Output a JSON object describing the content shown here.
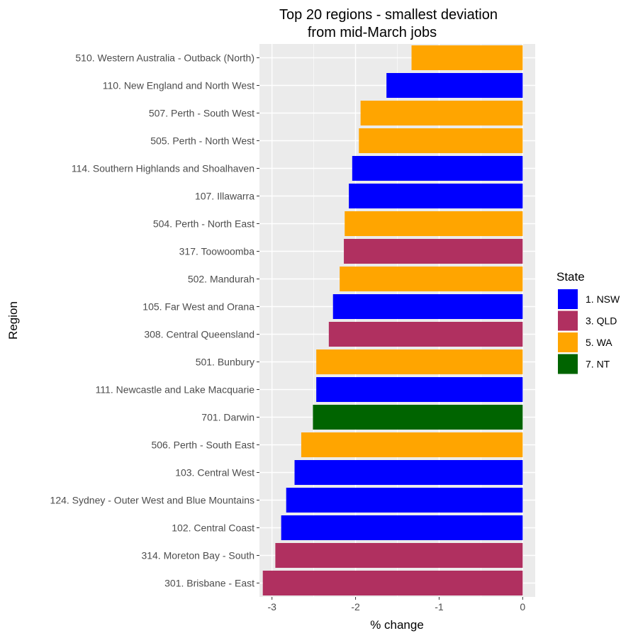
{
  "chart_data": {
    "type": "bar",
    "orientation": "horizontal",
    "title": "Top 20 regions - smallest deviation\nfrom mid-March jobs",
    "xlabel": "% change",
    "ylabel": "Region",
    "xlim": [
      -3.15,
      0.15
    ],
    "xticks": [
      -3,
      -2,
      -1,
      0
    ],
    "xtick_labels": [
      "-3",
      "-2",
      "-1",
      "0"
    ],
    "grid": true,
    "legend": {
      "title": "State",
      "placement": "right",
      "entries": [
        {
          "label": "1. NSW",
          "color": "#0000FF"
        },
        {
          "label": "3. QLD",
          "color": "#B03060"
        },
        {
          "label": "5. WA",
          "color": "#FFA500"
        },
        {
          "label": "7. NT",
          "color": "#006400"
        }
      ]
    },
    "categories": [
      "510. Western Australia - Outback (North)",
      "110. New England and North West",
      "507. Perth - South West",
      "505. Perth - North West",
      "114. Southern Highlands and Shoalhaven",
      "107. Illawarra",
      "504. Perth - North East",
      "317. Toowoomba",
      "502. Mandurah",
      "105. Far West and Orana",
      "308. Central Queensland",
      "501. Bunbury",
      "111. Newcastle and Lake Macquarie",
      "701. Darwin",
      "506. Perth - South East",
      "103. Central West",
      "124. Sydney - Outer West and Blue Mountains",
      "102. Central Coast",
      "314. Moreton Bay - South",
      "301. Brisbane - East"
    ],
    "values": [
      -1.33,
      -1.63,
      -1.94,
      -1.96,
      -2.04,
      -2.08,
      -2.13,
      -2.14,
      -2.19,
      -2.27,
      -2.32,
      -2.47,
      -2.47,
      -2.51,
      -2.65,
      -2.73,
      -2.83,
      -2.89,
      -2.96,
      -3.11
    ],
    "state": [
      "5. WA",
      "1. NSW",
      "5. WA",
      "5. WA",
      "1. NSW",
      "1. NSW",
      "5. WA",
      "3. QLD",
      "5. WA",
      "1. NSW",
      "3. QLD",
      "5. WA",
      "1. NSW",
      "7. NT",
      "5. WA",
      "1. NSW",
      "1. NSW",
      "1. NSW",
      "3. QLD",
      "3. QLD"
    ]
  }
}
